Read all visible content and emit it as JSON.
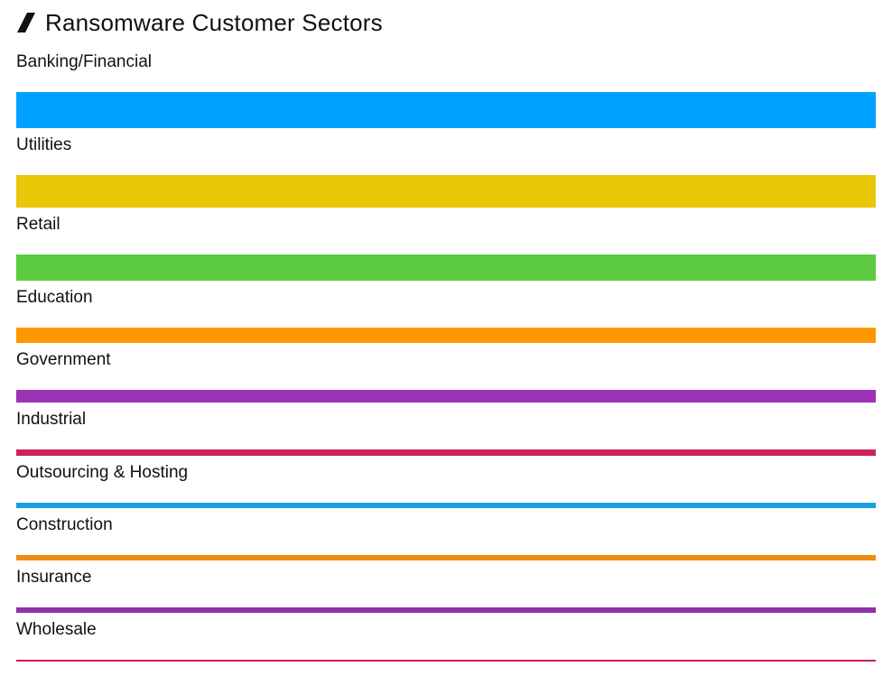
{
  "chart_data": {
    "type": "bar",
    "orientation": "horizontal",
    "title": "Ransomware Customer Sectors",
    "title_icon": "slash-icon",
    "categories": [
      "Banking/Financial",
      "Utilities",
      "Retail",
      "Education",
      "Government",
      "Industrial",
      "Outsourcing & Hosting",
      "Construction",
      "Insurance",
      "Wholesale"
    ],
    "values": [
      1.0,
      0.9,
      0.72,
      0.42,
      0.36,
      0.18,
      0.16,
      0.16,
      0.14,
      0.06
    ],
    "value_meaning": "relative share, encoded by bar thickness",
    "colors": [
      "#00a2ff",
      "#e8c707",
      "#5ccb3f",
      "#ff9800",
      "#9c32b5",
      "#cd2060",
      "#1aa0e0",
      "#f08a10",
      "#9030a5",
      "#c8186a"
    ],
    "grid": false,
    "legend": "none"
  }
}
